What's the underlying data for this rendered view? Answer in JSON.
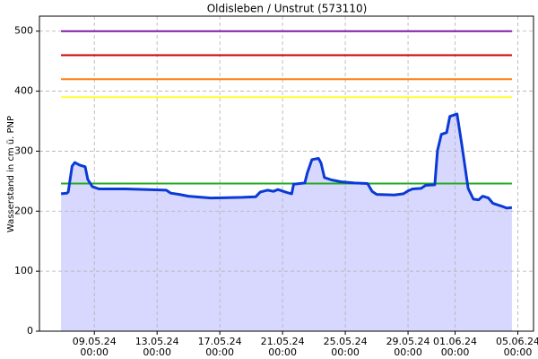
{
  "chart_data": {
    "type": "line",
    "title": "Oldisleben / Unstrut (573110)",
    "y_label": "Wasserstand in cm ü. PNP",
    "x": [
      "2024-05-06T21:00",
      "2024-05-07T06:00",
      "2024-05-07T08:00",
      "2024-05-07T14:00",
      "2024-05-07T18:00",
      "2024-05-08T01:00",
      "2024-05-08T10:00",
      "2024-05-08T14:00",
      "2024-05-08T21:00",
      "2024-05-09T07:00",
      "2024-05-11T00:00",
      "2024-05-13T14:00",
      "2024-05-13T21:00",
      "2024-05-14T10:00",
      "2024-05-15T00:00",
      "2024-05-16T10:00",
      "2024-05-18T10:00",
      "2024-05-19T07:00",
      "2024-05-19T14:00",
      "2024-05-20T01:00",
      "2024-05-20T10:00",
      "2024-05-20T17:00",
      "2024-05-21T07:00",
      "2024-05-21T14:00",
      "2024-05-21T17:00",
      "2024-05-22T10:00",
      "2024-05-22T14:00",
      "2024-05-22T21:00",
      "2024-05-23T07:00",
      "2024-05-23T11:00",
      "2024-05-23T16:00",
      "2024-05-24T03:00",
      "2024-05-24T17:00",
      "2024-05-25T14:00",
      "2024-05-26T10:00",
      "2024-05-26T17:00",
      "2024-05-27T00:00",
      "2024-05-28T03:00",
      "2024-05-28T17:00",
      "2024-05-29T00:00",
      "2024-05-29T07:00",
      "2024-05-29T20:00",
      "2024-05-30T03:00",
      "2024-05-30T17:00",
      "2024-05-30T21:00",
      "2024-05-31T03:00",
      "2024-05-31T11:00",
      "2024-05-31T16:00",
      "2024-06-01T03:00",
      "2024-06-01T10:00",
      "2024-06-01T20:00",
      "2024-06-02T04:00",
      "2024-06-02T12:00",
      "2024-06-02T18:00",
      "2024-06-03T03:00",
      "2024-06-03T10:00",
      "2024-06-04T00:00",
      "2024-06-04T07:00",
      "2024-06-04T15:00"
    ],
    "values": [
      229,
      230,
      232,
      275,
      281,
      277,
      274,
      253,
      241,
      237,
      237,
      235,
      230,
      228,
      225,
      222,
      223,
      224,
      232,
      235,
      233,
      236,
      231,
      229,
      245,
      247,
      264,
      286,
      288,
      280,
      256,
      252,
      249,
      247,
      246,
      233,
      228,
      227,
      229,
      234,
      237,
      238,
      243,
      244,
      301,
      328,
      331,
      358,
      362,
      313,
      238,
      220,
      219,
      225,
      222,
      213,
      208,
      205,
      206
    ],
    "color": "#0a3ad6",
    "area_color": "#d8d8ff",
    "thresholds": [
      {
        "value": 500,
        "color": "#7b1fa2"
      },
      {
        "value": 460,
        "color": "#cc0000"
      },
      {
        "value": 420,
        "color": "#ff7f0e"
      },
      {
        "value": 390,
        "color": "#ffff33"
      },
      {
        "value": 246,
        "color": "#22aa22"
      }
    ],
    "xlim": [
      "2024-05-05T12:00",
      "2024-06-06T00:00"
    ],
    "xticks": [
      {
        "value": "2024-05-09T00:00",
        "label": [
          "09.05.24",
          "00:00"
        ]
      },
      {
        "value": "2024-05-13T00:00",
        "label": [
          "13.05.24",
          "00:00"
        ]
      },
      {
        "value": "2024-05-17T00:00",
        "label": [
          "17.05.24",
          "00:00"
        ]
      },
      {
        "value": "2024-05-21T00:00",
        "label": [
          "21.05.24",
          "00:00"
        ]
      },
      {
        "value": "2024-05-25T00:00",
        "label": [
          "25.05.24",
          "00:00"
        ]
      },
      {
        "value": "2024-05-29T00:00",
        "label": [
          "29.05.24",
          "00:00"
        ]
      },
      {
        "value": "2024-06-01T00:00",
        "label": [
          "01.06.24",
          "00:00"
        ]
      },
      {
        "value": "2024-06-05T00:00",
        "label": [
          "05.06.24",
          "00:00"
        ]
      }
    ],
    "ylim": [
      0,
      525
    ],
    "yticks": [
      0,
      100,
      200,
      300,
      400,
      500
    ],
    "grid": true
  }
}
